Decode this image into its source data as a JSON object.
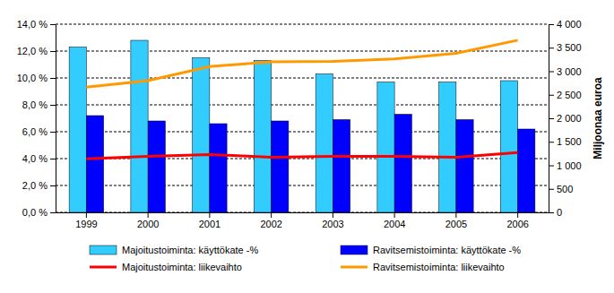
{
  "chart_data": {
    "type": "bar",
    "categories": [
      "1999",
      "2000",
      "2001",
      "2002",
      "2003",
      "2004",
      "2005",
      "2006"
    ],
    "series": [
      {
        "name": "Majoitustoiminta: käyttökate -%",
        "type": "bar",
        "color": "#33ccff",
        "values": [
          12.3,
          12.8,
          11.5,
          11.3,
          10.3,
          9.7,
          9.7,
          9.8
        ]
      },
      {
        "name": "Ravitsemistoiminta: käyttökate -%",
        "type": "bar",
        "color": "#0000ff",
        "values": [
          7.2,
          6.8,
          6.6,
          6.8,
          6.9,
          7.3,
          6.9,
          6.2
        ]
      },
      {
        "name": "Majoitustoiminta: liikevaihto",
        "type": "line",
        "axis": "y2",
        "color": "#ff0000",
        "values": [
          1140,
          1190,
          1230,
          1170,
          1190,
          1190,
          1170,
          1270
        ]
      },
      {
        "name": "Ravitsemistoiminta: liikevaihto",
        "type": "line",
        "axis": "y2",
        "color": "#ff9900",
        "values": [
          2660,
          2800,
          3100,
          3200,
          3210,
          3260,
          3380,
          3660
        ]
      }
    ],
    "ylim": [
      0,
      14
    ],
    "yticks": [
      {
        "value": 0,
        "label": "0,0 %"
      },
      {
        "value": 2,
        "label": "2,0 %"
      },
      {
        "value": 4,
        "label": "4,0 %"
      },
      {
        "value": 6,
        "label": "6,0 %"
      },
      {
        "value": 8,
        "label": "8,0 %"
      },
      {
        "value": 10,
        "label": "10,0 %"
      },
      {
        "value": 12,
        "label": "12,0 %"
      },
      {
        "value": 14,
        "label": "14,0 %"
      }
    ],
    "y2lim": [
      0,
      4000
    ],
    "y2ticks": [
      0,
      500,
      {
        "value": 1000,
        "label": "1 000"
      },
      {
        "value": 1500,
        "label": "1 500"
      },
      {
        "value": 2000,
        "label": "2 000"
      },
      {
        "value": 2500,
        "label": "2 500"
      },
      {
        "value": 3000,
        "label": "3 000"
      },
      {
        "value": 3500,
        "label": "3 500"
      },
      {
        "value": 4000,
        "label": "4 000"
      }
    ],
    "y2label": "Miljoonaa euroa",
    "grid": true,
    "legend": "bottom"
  }
}
